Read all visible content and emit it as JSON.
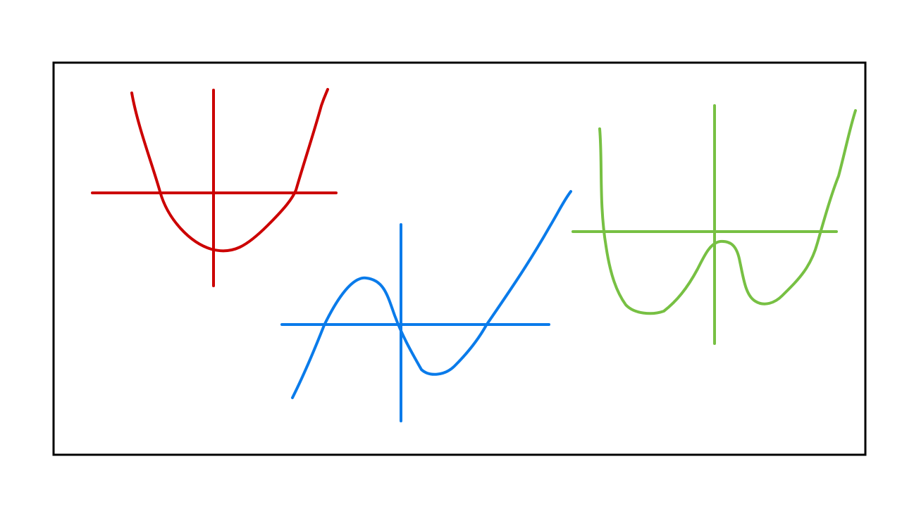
{
  "graphs": [
    {
      "id": "quadratic",
      "color": "#cc0000",
      "shape": "U-shaped parabola with two real roots"
    },
    {
      "id": "cubic",
      "color": "#0a7bea",
      "shape": "cubic curve with local max and local min, three real roots"
    },
    {
      "id": "quartic",
      "color": "#77c043",
      "shape": "W-shaped quartic with two minima and a local maximum"
    }
  ]
}
